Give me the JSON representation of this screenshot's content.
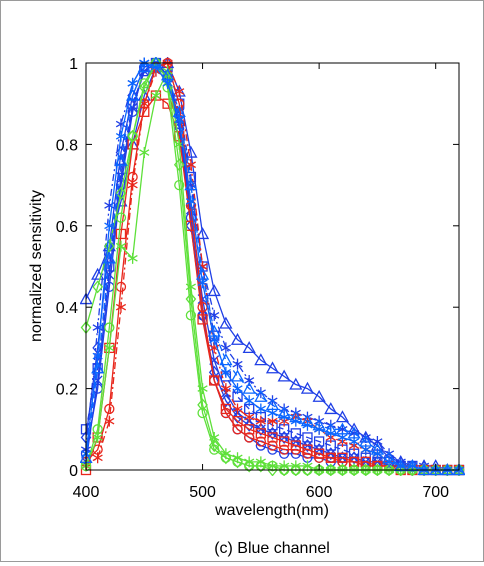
{
  "caption": "(c) Blue channel",
  "chart_data": {
    "type": "line",
    "xlabel": "wavelength(nm)",
    "ylabel": "normalized sensitivity",
    "xlim": [
      400,
      720
    ],
    "ylim": [
      0,
      1
    ],
    "xticks": [
      400,
      500,
      600,
      700
    ],
    "yticks": [
      0,
      0.2,
      0.4,
      0.6,
      0.8,
      1
    ],
    "xtick_labels": [
      "400",
      "500",
      "600",
      "700"
    ],
    "ytick_labels": [
      "0",
      "0.2",
      "0.4",
      "0.6",
      "0.8",
      "1"
    ],
    "grid": false,
    "legend": "none",
    "x": [
      400,
      410,
      420,
      430,
      440,
      450,
      460,
      470,
      480,
      490,
      500,
      510,
      520,
      530,
      540,
      550,
      560,
      570,
      580,
      590,
      600,
      610,
      620,
      630,
      640,
      650,
      660,
      670,
      680,
      690,
      700,
      710,
      720
    ],
    "colors": {
      "blue": "#1f3fe6",
      "red": "#e8271c",
      "green": "#5ee03a",
      "bright_blue": "#0a66ff"
    },
    "series": [
      {
        "color": "blue",
        "marker": "o",
        "dash": "solid",
        "values": [
          0.04,
          0.2,
          0.45,
          0.7,
          0.88,
          0.99,
          1.0,
          0.97,
          0.85,
          0.62,
          0.38,
          0.22,
          0.14,
          0.1,
          0.08,
          0.06,
          0.05,
          0.04,
          0.04,
          0.03,
          0.03,
          0.02,
          0.02,
          0.02,
          0.01,
          0.01,
          0.01,
          0.01,
          0.01,
          0.0,
          0.0,
          0.0,
          0.0
        ]
      },
      {
        "color": "blue",
        "marker": "triangle",
        "dash": "solid",
        "values": [
          0.42,
          0.48,
          0.55,
          0.66,
          0.8,
          0.92,
          0.99,
          1.0,
          0.93,
          0.78,
          0.58,
          0.44,
          0.36,
          0.32,
          0.3,
          0.27,
          0.25,
          0.23,
          0.21,
          0.2,
          0.18,
          0.15,
          0.13,
          0.1,
          0.08,
          0.06,
          0.03,
          0.02,
          0.01,
          0.01,
          0.01,
          0.0,
          0.0
        ]
      },
      {
        "color": "blue",
        "marker": "star",
        "dash": "dashdot",
        "values": [
          0.05,
          0.35,
          0.65,
          0.85,
          0.95,
          1.0,
          0.98,
          0.96,
          0.88,
          0.7,
          0.5,
          0.38,
          0.3,
          0.26,
          0.22,
          0.19,
          0.17,
          0.15,
          0.14,
          0.13,
          0.12,
          0.11,
          0.1,
          0.09,
          0.08,
          0.07,
          0.04,
          0.02,
          0.01,
          0.01,
          0.0,
          0.0,
          0.0
        ]
      },
      {
        "color": "blue",
        "marker": "diamond",
        "dash": "solid",
        "values": [
          0.08,
          0.3,
          0.55,
          0.78,
          0.92,
          0.99,
          1.0,
          0.96,
          0.84,
          0.6,
          0.38,
          0.24,
          0.17,
          0.13,
          0.11,
          0.1,
          0.09,
          0.08,
          0.07,
          0.06,
          0.05,
          0.04,
          0.03,
          0.03,
          0.02,
          0.02,
          0.01,
          0.01,
          0.0,
          0.0,
          0.0,
          0.0,
          0.0
        ]
      },
      {
        "color": "blue",
        "marker": "square",
        "dash": "dashed",
        "values": [
          0.1,
          0.25,
          0.5,
          0.74,
          0.9,
          0.98,
          1.0,
          0.99,
          0.9,
          0.72,
          0.5,
          0.33,
          0.23,
          0.18,
          0.15,
          0.13,
          0.11,
          0.1,
          0.09,
          0.08,
          0.07,
          0.06,
          0.05,
          0.04,
          0.03,
          0.02,
          0.02,
          0.01,
          0.01,
          0.0,
          0.0,
          0.0,
          0.0
        ]
      },
      {
        "color": "blue",
        "marker": "x",
        "dash": "solid",
        "values": [
          0.02,
          0.22,
          0.48,
          0.72,
          0.89,
          0.98,
          1.0,
          0.97,
          0.86,
          0.64,
          0.42,
          0.27,
          0.19,
          0.14,
          0.12,
          0.1,
          0.09,
          0.08,
          0.07,
          0.06,
          0.05,
          0.04,
          0.03,
          0.03,
          0.02,
          0.02,
          0.01,
          0.01,
          0.0,
          0.0,
          0.0,
          0.0,
          0.0
        ]
      },
      {
        "color": "red",
        "marker": "o",
        "dash": "solid",
        "values": [
          0.02,
          0.05,
          0.15,
          0.45,
          0.72,
          0.9,
          0.99,
          1.0,
          0.9,
          0.65,
          0.4,
          0.22,
          0.14,
          0.1,
          0.08,
          0.07,
          0.06,
          0.05,
          0.05,
          0.04,
          0.03,
          0.03,
          0.02,
          0.02,
          0.01,
          0.01,
          0.01,
          0.0,
          0.0,
          0.0,
          0.0,
          0.0,
          0.0
        ]
      },
      {
        "color": "red",
        "marker": "square",
        "dash": "solid",
        "values": [
          0.0,
          0.08,
          0.3,
          0.58,
          0.8,
          0.88,
          0.92,
          0.9,
          0.82,
          0.6,
          0.37,
          0.22,
          0.15,
          0.12,
          0.1,
          0.09,
          0.08,
          0.07,
          0.06,
          0.05,
          0.04,
          0.03,
          0.03,
          0.02,
          0.02,
          0.01,
          0.01,
          0.0,
          0.0,
          0.0,
          0.0,
          0.0,
          0.0
        ]
      },
      {
        "color": "red",
        "marker": "star",
        "dash": "dashdot",
        "values": [
          0.01,
          0.03,
          0.12,
          0.4,
          0.7,
          0.9,
          0.98,
          1.0,
          0.93,
          0.75,
          0.5,
          0.3,
          0.2,
          0.15,
          0.13,
          0.12,
          0.12,
          0.12,
          0.13,
          0.12,
          0.1,
          0.08,
          0.07,
          0.06,
          0.05,
          0.04,
          0.02,
          0.01,
          0.01,
          0.0,
          0.0,
          0.0,
          0.0
        ]
      },
      {
        "color": "green",
        "marker": "star",
        "dash": "solid",
        "values": [
          0.01,
          0.08,
          0.3,
          0.55,
          0.52,
          0.78,
          0.92,
          0.98,
          0.8,
          0.45,
          0.2,
          0.08,
          0.04,
          0.03,
          0.02,
          0.02,
          0.01,
          0.01,
          0.01,
          0.01,
          0.0,
          0.0,
          0.0,
          0.0,
          0.0,
          0.0,
          0.0,
          0.0,
          0.0,
          0.0,
          0.0,
          0.0,
          0.0
        ]
      },
      {
        "color": "green",
        "marker": "o",
        "dash": "solid",
        "values": [
          0.01,
          0.1,
          0.35,
          0.62,
          0.82,
          0.95,
          1.0,
          0.94,
          0.7,
          0.38,
          0.14,
          0.05,
          0.03,
          0.02,
          0.01,
          0.01,
          0.01,
          0.0,
          0.0,
          0.0,
          0.0,
          0.0,
          0.0,
          0.0,
          0.0,
          0.0,
          0.0,
          0.0,
          0.0,
          0.0,
          0.0,
          0.0,
          0.0
        ]
      },
      {
        "color": "green",
        "marker": "diamond",
        "dash": "solid",
        "values": [
          0.35,
          0.45,
          0.55,
          0.68,
          0.82,
          0.94,
          1.0,
          0.96,
          0.75,
          0.42,
          0.16,
          0.06,
          0.03,
          0.02,
          0.01,
          0.01,
          0.0,
          0.0,
          0.0,
          0.0,
          0.0,
          0.0,
          0.0,
          0.0,
          0.0,
          0.0,
          0.0,
          0.0,
          0.0,
          0.0,
          0.0,
          0.0,
          0.0
        ]
      },
      {
        "color": "bright_blue",
        "marker": "star",
        "dash": "solid",
        "values": [
          0.04,
          0.28,
          0.6,
          0.82,
          0.95,
          1.0,
          0.99,
          0.95,
          0.86,
          0.66,
          0.46,
          0.32,
          0.24,
          0.2,
          0.17,
          0.15,
          0.14,
          0.13,
          0.12,
          0.11,
          0.1,
          0.09,
          0.08,
          0.07,
          0.05,
          0.04,
          0.02,
          0.01,
          0.01,
          0.0,
          0.0,
          0.0,
          0.0
        ]
      },
      {
        "color": "bright_blue",
        "marker": "triangle",
        "dash": "dashed",
        "values": [
          0.03,
          0.25,
          0.52,
          0.76,
          0.92,
          0.99,
          1.0,
          0.97,
          0.88,
          0.7,
          0.48,
          0.34,
          0.27,
          0.23,
          0.2,
          0.18,
          0.16,
          0.14,
          0.13,
          0.12,
          0.11,
          0.1,
          0.1,
          0.09,
          0.07,
          0.05,
          0.03,
          0.01,
          0.01,
          0.0,
          0.0,
          0.0,
          0.0
        ]
      }
    ]
  }
}
